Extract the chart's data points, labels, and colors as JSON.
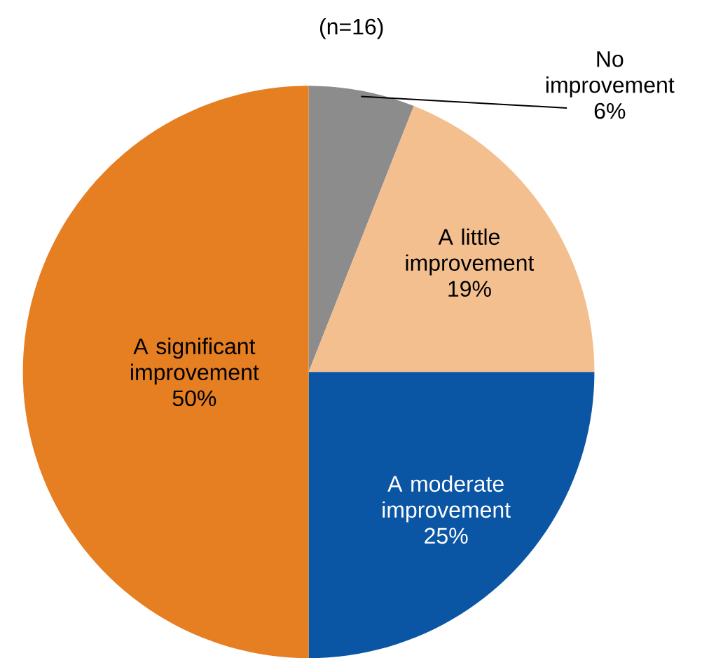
{
  "chart_data": {
    "type": "pie",
    "title": "(n=16)",
    "categories": [
      "No improvement",
      "A little improvement",
      "A moderate improvement",
      "A significant improvement"
    ],
    "values": [
      6,
      19,
      25,
      50
    ],
    "value_labels": [
      "6%",
      "19%",
      "25%",
      "50%"
    ],
    "colors": [
      "#8c8c8c",
      "#f4bf8f",
      "#0b56a4",
      "#e67e22"
    ]
  }
}
